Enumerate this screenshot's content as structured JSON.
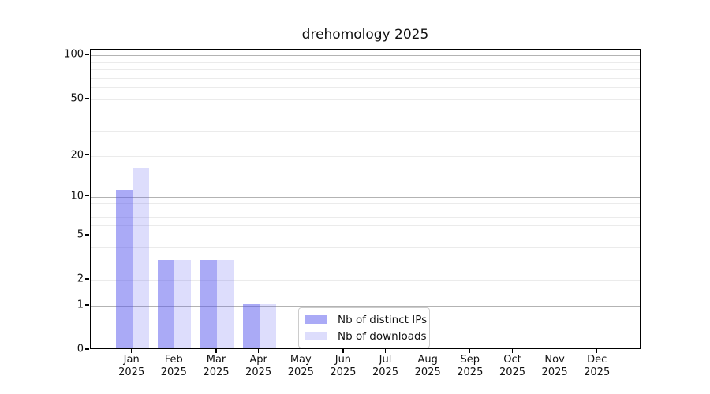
{
  "figure": {
    "background": "#ffffff"
  },
  "chart_data": {
    "type": "bar",
    "title": "drehomology 2025",
    "categories": [
      "Jan 2025",
      "Feb 2025",
      "Mar 2025",
      "Apr 2025",
      "May 2025",
      "Jun 2025",
      "Jul 2025",
      "Aug 2025",
      "Sep 2025",
      "Oct 2025",
      "Nov 2025",
      "Dec 2025"
    ],
    "series": [
      {
        "name": "Nb of distinct IPs",
        "color": "rgba(85,85,238,0.5)",
        "values": [
          11,
          3,
          3,
          1,
          0,
          0,
          0,
          0,
          0,
          0,
          0,
          0
        ]
      },
      {
        "name": "Nb of downloads",
        "color": "rgba(85,85,238,0.2)",
        "values": [
          16,
          3,
          3,
          1,
          0,
          0,
          0,
          0,
          0,
          0,
          0,
          0
        ]
      }
    ],
    "xlabel": "",
    "ylabel": "",
    "y_axis": {
      "scale": "log1p",
      "tick_values": [
        0,
        1,
        2,
        5,
        10,
        20,
        50,
        100
      ],
      "major_gridlines": [
        1,
        10,
        100
      ],
      "minor_gridlines": [
        2,
        3,
        4,
        6,
        7,
        8,
        9,
        5,
        20,
        30,
        40,
        50,
        60,
        70,
        80,
        90
      ],
      "min": 0,
      "max": 109.5
    },
    "grid": true,
    "legend_position": "lower-center",
    "colors": {
      "major_grid": "#b3b3b3",
      "minor_grid": "#ebebeb",
      "spine": "#000000",
      "text": "#111111"
    }
  }
}
